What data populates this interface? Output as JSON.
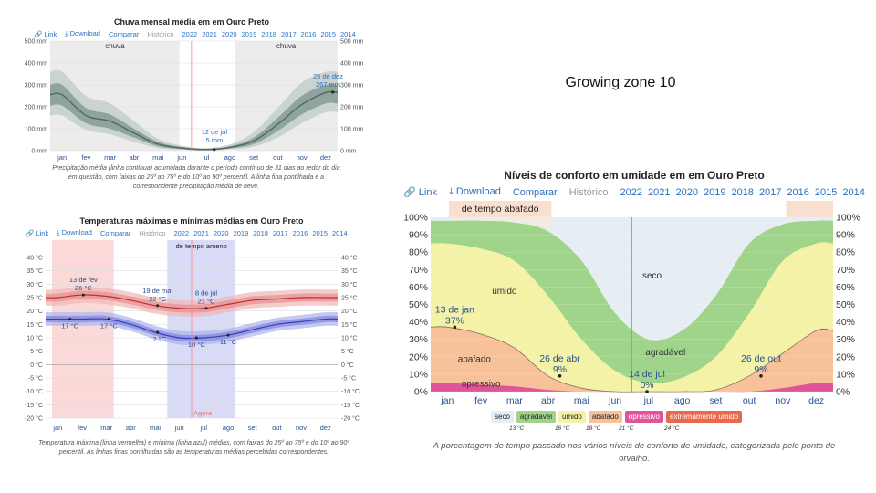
{
  "growing_zone": "Growing zone 10",
  "toolbar": {
    "link": "Link",
    "download": "Download",
    "compare": "Comparar",
    "history": "Histórico",
    "years": [
      "2022",
      "2021",
      "2020",
      "2019",
      "2018",
      "2017",
      "2016",
      "2015",
      "2014"
    ]
  },
  "months": [
    "jan",
    "fev",
    "mar",
    "abr",
    "mai",
    "jun",
    "jul",
    "ago",
    "set",
    "out",
    "nov",
    "dez"
  ],
  "rain": {
    "title": "Chuva mensal média em em Ouro Preto",
    "band_left": "chuva",
    "band_right": "chuva",
    "y_ticks": [
      "500 mm",
      "400 mm",
      "300 mm",
      "200 mm",
      "100 mm",
      "0 mm"
    ],
    "ann_jul_date": "12 de jul",
    "ann_jul_val": "5 mm",
    "ann_dec_date": "25 de dez",
    "ann_dec_val": "267 mm",
    "caption": "Precipitação média (linha contínua) acumulada durante o período contínuo de 31 dias ao redor do dia em questão, com faixas do 25º ao 75º e do 10º ao 90º percentil. A linha fina pontilhada é a correspondente precipitação média de neve.",
    "colors": {
      "band_outer": "#c9d3cf",
      "band_inner": "#8fa49c",
      "line": "#51675f"
    }
  },
  "temp": {
    "title": "Temperaturas máximas e mínimas médias em Ouro Preto",
    "band_mild": "de tempo ameno",
    "now_label": "Agora",
    "y_ticks": [
      "40 °C",
      "35 °C",
      "30 °C",
      "25 °C",
      "20 °C",
      "15 °C",
      "10 °C",
      "5 °C",
      "0 °C",
      "-5 °C",
      "-10 °C",
      "-15 °C",
      "-20 °C"
    ],
    "ann_feb_date": "13 de fev",
    "ann_feb_val": "26 °C",
    "ann_may_date": "19 de mai",
    "ann_may_val": "22 °C",
    "ann_jul_date": "8 de jul",
    "ann_jul_val": "21 °C",
    "ann_min_jan": "17 °C",
    "ann_min_mar": "17 °C",
    "ann_min_may": "12 °C",
    "ann_min_jul": "10 °C",
    "ann_min_aug": "11 °C",
    "caption": "Temperatura máxima (linha vermelha) e mínima (linha azul) médias, com faixas do 25º ao 75º e do 10º ao 90º percentil. As linhas finas pontilhadas são as temperaturas médias percebidas correspondentes.",
    "colors": {
      "hot_band": "#fbd9d9",
      "mild_band": "#d9dbf6",
      "max_line": "#c42a2a",
      "min_line": "#3d3db5"
    }
  },
  "humid": {
    "title": "Níveis de conforto em umidade em em Ouro Preto",
    "band_muggy": "de tempo abafado",
    "y_ticks": [
      "100%",
      "90%",
      "80%",
      "70%",
      "60%",
      "50%",
      "40%",
      "30%",
      "20%",
      "10%",
      "0%"
    ],
    "label_seco": "seco",
    "label_umido": "úmido",
    "label_agradavel": "agradável",
    "label_abafado": "abafado",
    "label_opressivo": "opressivo",
    "ann_jan_date": "13 de jan",
    "ann_jan_val": "37%",
    "ann_apr_date": "26 de abr",
    "ann_apr_val": "9%",
    "ann_jul_date": "14 de jul",
    "ann_jul_val": "0%",
    "ann_oct_date": "26 de out",
    "ann_oct_val": "9%",
    "legend": [
      {
        "label": "seco",
        "color": "#e6eef3"
      },
      {
        "label": "agradável",
        "color": "#9fd48a"
      },
      {
        "label": "úmido",
        "color": "#f4f2a6"
      },
      {
        "label": "abafado",
        "color": "#f7c29a"
      },
      {
        "label": "opressivo",
        "color": "#e0559a"
      },
      {
        "label": "extremamente úmido",
        "color": "#e9694f"
      }
    ],
    "legend_temps": [
      "13 °C",
      "16 °C",
      "18 °C",
      "21 °C",
      "24 °C"
    ],
    "caption": "A porcentagem de tempo passado nos vários níveis de conforto de umidade, categorizada pelo ponto de orvalho."
  },
  "chart_data": [
    {
      "type": "area",
      "title": "Chuva mensal média em em Ouro Preto",
      "x": [
        "jan",
        "fev",
        "mar",
        "abr",
        "mai",
        "jun",
        "jul",
        "ago",
        "set",
        "out",
        "nov",
        "dez"
      ],
      "y_units": "mm",
      "ylim": [
        0,
        500
      ],
      "series": [
        {
          "name": "Precipitação média",
          "values": [
            255,
            160,
            135,
            80,
            30,
            12,
            5,
            15,
            45,
            120,
            210,
            265
          ]
        },
        {
          "name": "p75",
          "values": [
            300,
            195,
            165,
            100,
            40,
            16,
            8,
            20,
            60,
            150,
            250,
            300
          ]
        },
        {
          "name": "p25",
          "values": [
            205,
            125,
            100,
            60,
            20,
            7,
            2,
            10,
            30,
            90,
            165,
            215
          ]
        },
        {
          "name": "p90",
          "values": [
            360,
            250,
            215,
            135,
            55,
            22,
            12,
            28,
            85,
            195,
            310,
            360
          ]
        },
        {
          "name": "p10",
          "values": [
            160,
            95,
            75,
            40,
            12,
            4,
            0,
            5,
            18,
            60,
            125,
            175
          ]
        }
      ],
      "annotations": [
        {
          "date": "12 de jul",
          "value": 5
        },
        {
          "date": "25 de dez",
          "value": 267
        }
      ]
    },
    {
      "type": "line",
      "title": "Temperaturas máximas e mínimas médias em Ouro Preto",
      "x": [
        "jan",
        "fev",
        "mar",
        "abr",
        "mai",
        "jun",
        "jul",
        "ago",
        "set",
        "out",
        "nov",
        "dez"
      ],
      "y_units": "°C",
      "ylim": [
        -20,
        40
      ],
      "series": [
        {
          "name": "máxima",
          "values": [
            25,
            26,
            25.5,
            24,
            22,
            21,
            21,
            22.5,
            24,
            24.5,
            25,
            25
          ]
        },
        {
          "name": "mínima",
          "values": [
            17,
            17,
            17,
            15,
            12,
            10,
            10,
            11,
            13,
            15,
            16,
            17
          ]
        }
      ],
      "annotations": [
        {
          "date": "13 de fev",
          "value": 26
        },
        {
          "date": "19 de mai",
          "value": 22
        },
        {
          "date": "8 de jul",
          "value": 21
        },
        {
          "value": 17
        },
        {
          "value": 17
        },
        {
          "value": 12
        },
        {
          "value": 10
        },
        {
          "value": 11
        }
      ]
    },
    {
      "type": "area",
      "title": "Níveis de conforto em umidade em em Ouro Preto",
      "x": [
        "jan",
        "fev",
        "mar",
        "abr",
        "mai",
        "jun",
        "jul",
        "ago",
        "set",
        "out",
        "nov",
        "dez"
      ],
      "y_units": "%",
      "ylim": [
        0,
        100
      ],
      "series": [
        {
          "name": "opressivo",
          "values": [
            5,
            4,
            3,
            1,
            0,
            0,
            0,
            0,
            0,
            0,
            2,
            5
          ]
        },
        {
          "name": "abafado",
          "values": [
            37,
            33,
            25,
            9,
            2,
            0,
            0,
            0,
            1,
            9,
            22,
            35
          ]
        },
        {
          "name": "úmido",
          "values": [
            85,
            82,
            75,
            55,
            30,
            12,
            5,
            8,
            20,
            45,
            75,
            85
          ]
        },
        {
          "name": "agradável",
          "values": [
            98,
            98,
            97,
            92,
            75,
            45,
            30,
            35,
            55,
            85,
            96,
            98
          ]
        }
      ],
      "annotations": [
        {
          "date": "13 de jan",
          "value": 37
        },
        {
          "date": "26 de abr",
          "value": 9
        },
        {
          "date": "14 de jul",
          "value": 0
        },
        {
          "date": "26 de out",
          "value": 9
        }
      ]
    }
  ]
}
